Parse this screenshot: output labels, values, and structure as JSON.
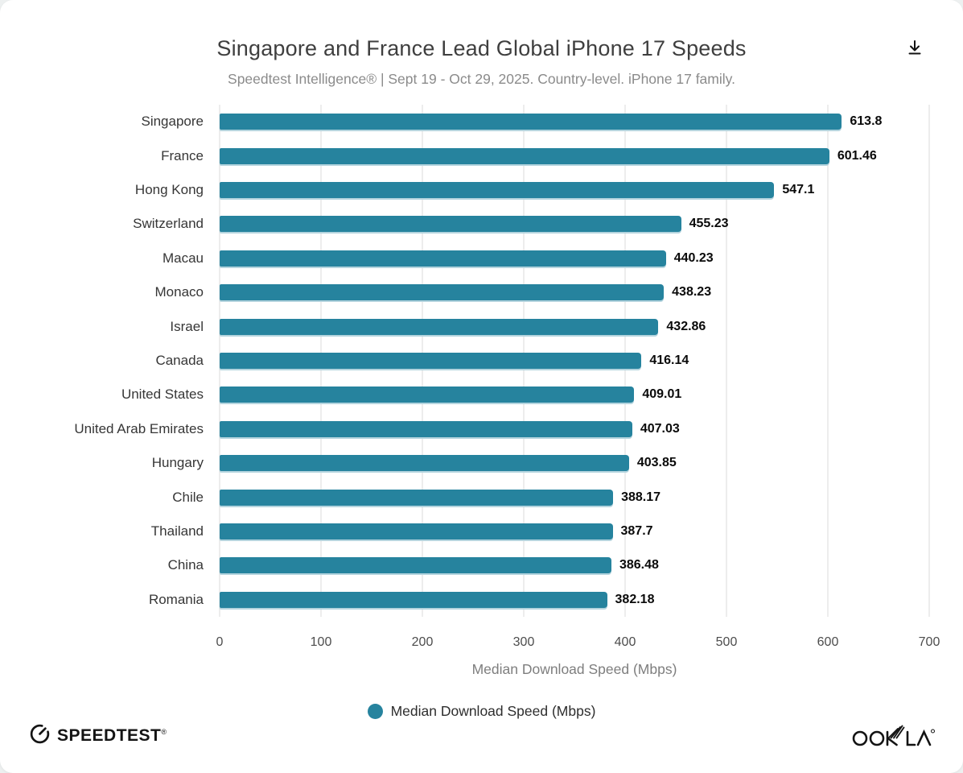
{
  "header": {
    "title": "Singapore and France Lead Global iPhone 17 Speeds",
    "subtitle": "Speedtest Intelligence® | Sept 19 - Oct 29, 2025. Country-level. iPhone 17 family."
  },
  "toolbar": {
    "download_icon": "arrow-down-to-line"
  },
  "chart_data": {
    "type": "bar",
    "orientation": "horizontal",
    "title": "Singapore and France Lead Global iPhone 17 Speeds",
    "subtitle": "Speedtest Intelligence® | Sept 19 - Oct 29, 2025. Country-level. iPhone 17 family.",
    "categories": [
      "Singapore",
      "France",
      "Hong Kong",
      "Switzerland",
      "Macau",
      "Monaco",
      "Israel",
      "Canada",
      "United States",
      "United Arab Emirates",
      "Hungary",
      "Chile",
      "Thailand",
      "China",
      "Romania"
    ],
    "values": [
      613.8,
      601.46,
      547.1,
      455.23,
      440.23,
      438.23,
      432.86,
      416.14,
      409.01,
      407.03,
      403.85,
      388.17,
      387.7,
      386.48,
      382.18
    ],
    "value_labels": [
      "613.8",
      "601.46",
      "547.1",
      "455.23",
      "440.23",
      "438.23",
      "432.86",
      "416.14",
      "409.01",
      "407.03",
      "403.85",
      "388.17",
      "387.7",
      "386.48",
      "382.18"
    ],
    "xlabel": "Median Download Speed (Mbps)",
    "ylabel": "",
    "xlim": [
      0,
      700
    ],
    "xticks": [
      0,
      100,
      200,
      300,
      400,
      500,
      600,
      700
    ],
    "grid": "vertical",
    "legend": {
      "label": "Median Download Speed (Mbps)",
      "position": "bottom",
      "marker": "circle"
    },
    "colors": {
      "bar": "#26839e",
      "bar_edge_bottom": "#b4d4de",
      "gridline": "#ededed",
      "value_text": "#0a0a0a"
    }
  },
  "footer": {
    "speedtest_text": "SPEEDTEST",
    "speedtest_registered": "®",
    "speedtest_icon": "speedometer-gauge",
    "ookla_text": "OOKLA",
    "ookla_registered": "®"
  }
}
